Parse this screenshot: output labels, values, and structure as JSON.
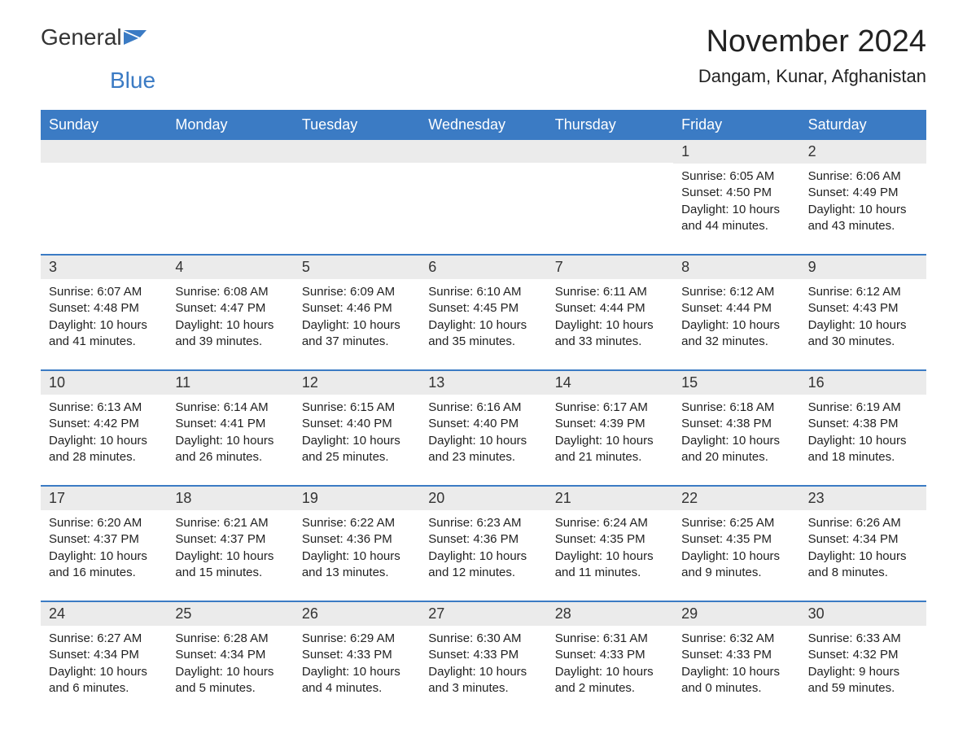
{
  "logo": {
    "text_general": "General",
    "text_blue": "Blue",
    "color_general": "#333333",
    "color_blue": "#3b7bc4",
    "icon_color": "#3b7bc4"
  },
  "header": {
    "month_title": "November 2024",
    "location": "Dangam, Kunar, Afghanistan"
  },
  "colors": {
    "header_bg": "#3b7bc4",
    "header_text": "#ffffff",
    "day_number_bg": "#ebebeb",
    "week_border": "#3b7bc4",
    "text": "#222222",
    "background": "#ffffff"
  },
  "typography": {
    "month_title_fontsize": 38,
    "location_fontsize": 22,
    "day_header_fontsize": 18,
    "day_number_fontsize": 18,
    "day_content_fontsize": 15
  },
  "day_headers": [
    "Sunday",
    "Monday",
    "Tuesday",
    "Wednesday",
    "Thursday",
    "Friday",
    "Saturday"
  ],
  "weeks": [
    [
      {
        "day": "",
        "sunrise": "",
        "sunset": "",
        "daylight": ""
      },
      {
        "day": "",
        "sunrise": "",
        "sunset": "",
        "daylight": ""
      },
      {
        "day": "",
        "sunrise": "",
        "sunset": "",
        "daylight": ""
      },
      {
        "day": "",
        "sunrise": "",
        "sunset": "",
        "daylight": ""
      },
      {
        "day": "",
        "sunrise": "",
        "sunset": "",
        "daylight": ""
      },
      {
        "day": "1",
        "sunrise": "Sunrise: 6:05 AM",
        "sunset": "Sunset: 4:50 PM",
        "daylight": "Daylight: 10 hours and 44 minutes."
      },
      {
        "day": "2",
        "sunrise": "Sunrise: 6:06 AM",
        "sunset": "Sunset: 4:49 PM",
        "daylight": "Daylight: 10 hours and 43 minutes."
      }
    ],
    [
      {
        "day": "3",
        "sunrise": "Sunrise: 6:07 AM",
        "sunset": "Sunset: 4:48 PM",
        "daylight": "Daylight: 10 hours and 41 minutes."
      },
      {
        "day": "4",
        "sunrise": "Sunrise: 6:08 AM",
        "sunset": "Sunset: 4:47 PM",
        "daylight": "Daylight: 10 hours and 39 minutes."
      },
      {
        "day": "5",
        "sunrise": "Sunrise: 6:09 AM",
        "sunset": "Sunset: 4:46 PM",
        "daylight": "Daylight: 10 hours and 37 minutes."
      },
      {
        "day": "6",
        "sunrise": "Sunrise: 6:10 AM",
        "sunset": "Sunset: 4:45 PM",
        "daylight": "Daylight: 10 hours and 35 minutes."
      },
      {
        "day": "7",
        "sunrise": "Sunrise: 6:11 AM",
        "sunset": "Sunset: 4:44 PM",
        "daylight": "Daylight: 10 hours and 33 minutes."
      },
      {
        "day": "8",
        "sunrise": "Sunrise: 6:12 AM",
        "sunset": "Sunset: 4:44 PM",
        "daylight": "Daylight: 10 hours and 32 minutes."
      },
      {
        "day": "9",
        "sunrise": "Sunrise: 6:12 AM",
        "sunset": "Sunset: 4:43 PM",
        "daylight": "Daylight: 10 hours and 30 minutes."
      }
    ],
    [
      {
        "day": "10",
        "sunrise": "Sunrise: 6:13 AM",
        "sunset": "Sunset: 4:42 PM",
        "daylight": "Daylight: 10 hours and 28 minutes."
      },
      {
        "day": "11",
        "sunrise": "Sunrise: 6:14 AM",
        "sunset": "Sunset: 4:41 PM",
        "daylight": "Daylight: 10 hours and 26 minutes."
      },
      {
        "day": "12",
        "sunrise": "Sunrise: 6:15 AM",
        "sunset": "Sunset: 4:40 PM",
        "daylight": "Daylight: 10 hours and 25 minutes."
      },
      {
        "day": "13",
        "sunrise": "Sunrise: 6:16 AM",
        "sunset": "Sunset: 4:40 PM",
        "daylight": "Daylight: 10 hours and 23 minutes."
      },
      {
        "day": "14",
        "sunrise": "Sunrise: 6:17 AM",
        "sunset": "Sunset: 4:39 PM",
        "daylight": "Daylight: 10 hours and 21 minutes."
      },
      {
        "day": "15",
        "sunrise": "Sunrise: 6:18 AM",
        "sunset": "Sunset: 4:38 PM",
        "daylight": "Daylight: 10 hours and 20 minutes."
      },
      {
        "day": "16",
        "sunrise": "Sunrise: 6:19 AM",
        "sunset": "Sunset: 4:38 PM",
        "daylight": "Daylight: 10 hours and 18 minutes."
      }
    ],
    [
      {
        "day": "17",
        "sunrise": "Sunrise: 6:20 AM",
        "sunset": "Sunset: 4:37 PM",
        "daylight": "Daylight: 10 hours and 16 minutes."
      },
      {
        "day": "18",
        "sunrise": "Sunrise: 6:21 AM",
        "sunset": "Sunset: 4:37 PM",
        "daylight": "Daylight: 10 hours and 15 minutes."
      },
      {
        "day": "19",
        "sunrise": "Sunrise: 6:22 AM",
        "sunset": "Sunset: 4:36 PM",
        "daylight": "Daylight: 10 hours and 13 minutes."
      },
      {
        "day": "20",
        "sunrise": "Sunrise: 6:23 AM",
        "sunset": "Sunset: 4:36 PM",
        "daylight": "Daylight: 10 hours and 12 minutes."
      },
      {
        "day": "21",
        "sunrise": "Sunrise: 6:24 AM",
        "sunset": "Sunset: 4:35 PM",
        "daylight": "Daylight: 10 hours and 11 minutes."
      },
      {
        "day": "22",
        "sunrise": "Sunrise: 6:25 AM",
        "sunset": "Sunset: 4:35 PM",
        "daylight": "Daylight: 10 hours and 9 minutes."
      },
      {
        "day": "23",
        "sunrise": "Sunrise: 6:26 AM",
        "sunset": "Sunset: 4:34 PM",
        "daylight": "Daylight: 10 hours and 8 minutes."
      }
    ],
    [
      {
        "day": "24",
        "sunrise": "Sunrise: 6:27 AM",
        "sunset": "Sunset: 4:34 PM",
        "daylight": "Daylight: 10 hours and 6 minutes."
      },
      {
        "day": "25",
        "sunrise": "Sunrise: 6:28 AM",
        "sunset": "Sunset: 4:34 PM",
        "daylight": "Daylight: 10 hours and 5 minutes."
      },
      {
        "day": "26",
        "sunrise": "Sunrise: 6:29 AM",
        "sunset": "Sunset: 4:33 PM",
        "daylight": "Daylight: 10 hours and 4 minutes."
      },
      {
        "day": "27",
        "sunrise": "Sunrise: 6:30 AM",
        "sunset": "Sunset: 4:33 PM",
        "daylight": "Daylight: 10 hours and 3 minutes."
      },
      {
        "day": "28",
        "sunrise": "Sunrise: 6:31 AM",
        "sunset": "Sunset: 4:33 PM",
        "daylight": "Daylight: 10 hours and 2 minutes."
      },
      {
        "day": "29",
        "sunrise": "Sunrise: 6:32 AM",
        "sunset": "Sunset: 4:33 PM",
        "daylight": "Daylight: 10 hours and 0 minutes."
      },
      {
        "day": "30",
        "sunrise": "Sunrise: 6:33 AM",
        "sunset": "Sunset: 4:32 PM",
        "daylight": "Daylight: 9 hours and 59 minutes."
      }
    ]
  ]
}
